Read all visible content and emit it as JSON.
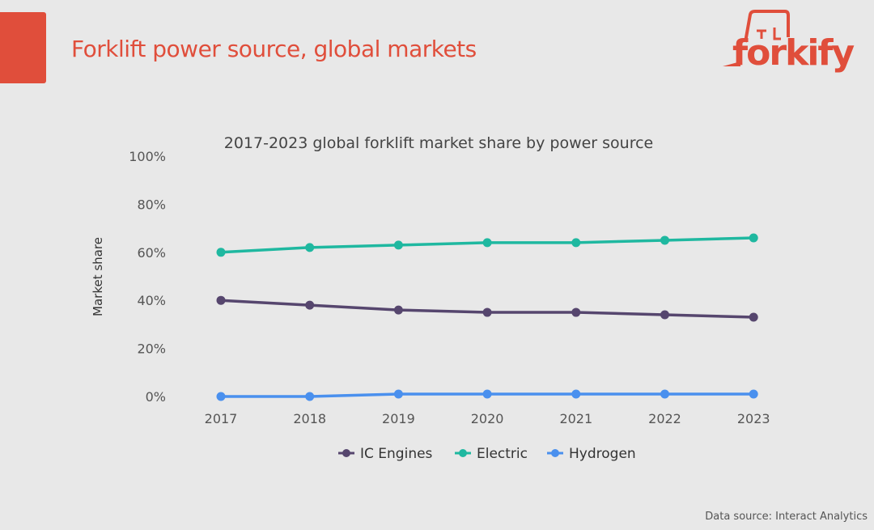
{
  "header": {
    "title": "Forklift power source, global markets",
    "logo_text": "forkify"
  },
  "footer": {
    "source": "Data source: Interact Analytics"
  },
  "colors": {
    "accent": "#e04e3b",
    "ic": "#56466e",
    "electric": "#1fb8a0",
    "hydrogen": "#4a90ee"
  },
  "chart_data": {
    "type": "line",
    "title": "2017-2023 global forklift market share by power source",
    "xlabel": "",
    "ylabel": "Market share",
    "categories": [
      "2017",
      "2018",
      "2019",
      "2020",
      "2021",
      "2022",
      "2023"
    ],
    "ylim": [
      0,
      100
    ],
    "yticks": [
      "0%",
      "20%",
      "40%",
      "60%",
      "80%",
      "100%"
    ],
    "grid": false,
    "legend": "bottom",
    "series": [
      {
        "name": "IC Engines",
        "color": "#56466e",
        "values": [
          40,
          38,
          36,
          35,
          35,
          34,
          33
        ]
      },
      {
        "name": "Electric",
        "color": "#1fb8a0",
        "values": [
          60,
          62,
          63,
          64,
          64,
          65,
          66
        ]
      },
      {
        "name": "Hydrogen",
        "color": "#4a90ee",
        "values": [
          0,
          0,
          1,
          1,
          1,
          1,
          1
        ]
      }
    ]
  }
}
